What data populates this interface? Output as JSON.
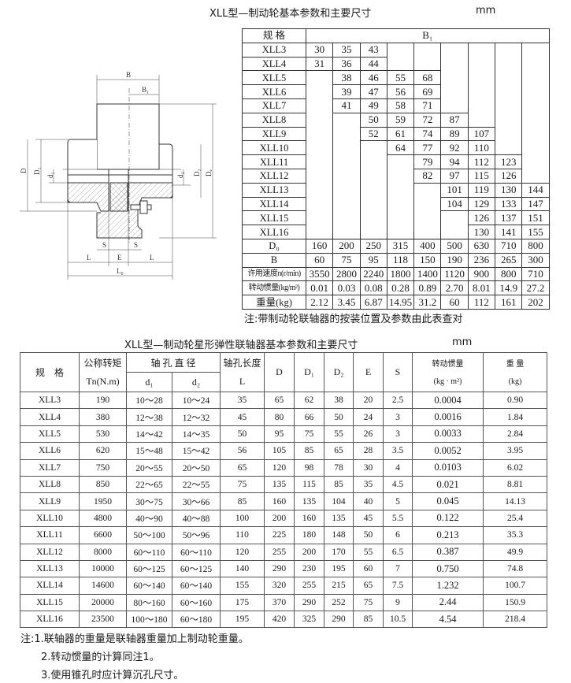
{
  "top": {
    "title": "XLL型—制动轮基本参数和主要尺寸",
    "unit": "mm",
    "header_label": "规 格",
    "header_b1": "B₁",
    "rows": [
      {
        "model": "XLL3",
        "values": [
          "30",
          "35",
          "43",
          "",
          "",
          "",
          "",
          "",
          ""
        ]
      },
      {
        "model": "XLL4",
        "values": [
          "31",
          "36",
          "44",
          "",
          "",
          "",
          "",
          "",
          ""
        ]
      },
      {
        "model": "XLL5",
        "values": [
          "",
          "38",
          "46",
          "55",
          "68",
          "",
          "",
          "",
          ""
        ]
      },
      {
        "model": "XLL6",
        "values": [
          "",
          "39",
          "47",
          "56",
          "69",
          "",
          "",
          "",
          ""
        ]
      },
      {
        "model": "XLL7",
        "values": [
          "",
          "41",
          "49",
          "58",
          "71",
          "",
          "",
          "",
          ""
        ]
      },
      {
        "model": "XLL8",
        "values": [
          "",
          "",
          "50",
          "59",
          "72",
          "87",
          "",
          "",
          ""
        ]
      },
      {
        "model": "XLL9",
        "values": [
          "",
          "",
          "52",
          "61",
          "74",
          "89",
          "107",
          "",
          ""
        ]
      },
      {
        "model": "XLL10",
        "values": [
          "",
          "",
          "",
          "64",
          "77",
          "92",
          "110",
          "",
          ""
        ]
      },
      {
        "model": "XLL11",
        "values": [
          "",
          "",
          "",
          "",
          "79",
          "94",
          "112",
          "123",
          ""
        ]
      },
      {
        "model": "XLL12",
        "values": [
          "",
          "",
          "",
          "",
          "82",
          "97",
          "115",
          "126",
          ""
        ]
      },
      {
        "model": "XLL13",
        "values": [
          "",
          "",
          "",
          "",
          "",
          "101",
          "119",
          "130",
          "144"
        ]
      },
      {
        "model": "XLL14",
        "values": [
          "",
          "",
          "",
          "",
          "",
          "104",
          "129",
          "133",
          "147"
        ]
      },
      {
        "model": "XLL15",
        "values": [
          "",
          "",
          "",
          "",
          "",
          "",
          "126",
          "137",
          "151"
        ]
      },
      {
        "model": "XLL16",
        "values": [
          "",
          "",
          "",
          "",
          "",
          "",
          "130",
          "141",
          "155"
        ]
      }
    ],
    "params": [
      {
        "label": "D₀",
        "values": [
          "160",
          "200",
          "250",
          "315",
          "400",
          "500",
          "630",
          "710",
          "800"
        ]
      },
      {
        "label": "B",
        "values": [
          "60",
          "75",
          "95",
          "118",
          "150",
          "190",
          "236",
          "265",
          "300"
        ]
      },
      {
        "label": "许用速度n(r/min)",
        "values": [
          "3550",
          "2800",
          "2240",
          "1800",
          "1400",
          "1120",
          "900",
          "800",
          "710"
        ]
      },
      {
        "label": "转动惯量(kg/m²)",
        "values": [
          "0.01",
          "0.03",
          "0.08",
          "0.28",
          "0.89",
          "2.70",
          "8.01",
          "14.9",
          "27.2"
        ]
      },
      {
        "label": "重量(kg)",
        "values": [
          "2.12",
          "3.45",
          "6.87",
          "14.95",
          "31.2",
          "60",
          "112",
          "161",
          "202"
        ]
      }
    ],
    "note": "注:带制动轮联轴器的按装位置及参数由此表查对"
  },
  "drawing": {
    "labels": {
      "B": "B",
      "B1": "B₁",
      "D": "D",
      "D1": "D₁",
      "d1": "d₁",
      "d2": "d₂",
      "D2": "D₂",
      "De": "Dₑ",
      "S": "S",
      "E": "E",
      "L": "L",
      "L0": "L₀"
    }
  },
  "bottom": {
    "title": "XLL型—制动轮星形弹性联轴器基本参数和主要尺寸",
    "unit": "mm",
    "headers": {
      "model": "规　格",
      "torque": "公称转矩",
      "torque_unit": "Tn(N.m)",
      "bore": "轴 孔 直 径",
      "d1": "d₁",
      "d2": "d₂",
      "length": "轴孔长度",
      "length_sym": "L",
      "D": "D",
      "D1": "D₁",
      "D2": "D₂",
      "E": "E",
      "S": "S",
      "inertia": "转动惯量",
      "inertia_unit": "(kg · m²)",
      "weight": "重 量",
      "weight_unit": "(kg)"
    },
    "rows": [
      [
        "XLL3",
        "190",
        "10～28",
        "10～24",
        "35",
        "65",
        "62",
        "38",
        "20",
        "2.5",
        "0.0004",
        "0.90"
      ],
      [
        "XLL4",
        "380",
        "12～38",
        "12～32",
        "45",
        "80",
        "66",
        "50",
        "24",
        "3",
        "0.0016",
        "1.84"
      ],
      [
        "XLL5",
        "530",
        "14～42",
        "14～35",
        "50",
        "95",
        "75",
        "55",
        "26",
        "3",
        "0.0033",
        "2.84"
      ],
      [
        "XLL6",
        "620",
        "15～48",
        "15～42",
        "56",
        "105",
        "85",
        "65",
        "28",
        "3.5",
        "0.0052",
        "3.95"
      ],
      [
        "XLL7",
        "750",
        "20～55",
        "20～50",
        "65",
        "120",
        "98",
        "78",
        "30",
        "4",
        "0.0103",
        "6.02"
      ],
      [
        "XLL8",
        "850",
        "22～65",
        "22～55",
        "75",
        "135",
        "115",
        "85",
        "35",
        "4.5",
        "0.021",
        "8.81"
      ],
      [
        "XLL9",
        "1950",
        "30～75",
        "30～66",
        "85",
        "160",
        "135",
        "104",
        "40",
        "5",
        "0.045",
        "14.13"
      ],
      [
        "XLL10",
        "4800",
        "40～90",
        "40～88",
        "100",
        "200",
        "160",
        "135",
        "45",
        "5.5",
        "0.122",
        "25.4"
      ],
      [
        "XLL11",
        "6600",
        "50～100",
        "50～96",
        "110",
        "225",
        "180",
        "148",
        "50",
        "6",
        "0.213",
        "35.3"
      ],
      [
        "XLL12",
        "8000",
        "60～110",
        "60～110",
        "120",
        "255",
        "200",
        "170",
        "55",
        "6.5",
        "0.387",
        "49.9"
      ],
      [
        "XLL13",
        "10000",
        "60～125",
        "60～125",
        "140",
        "290",
        "230",
        "195",
        "60",
        "7",
        "0.750",
        "74.8"
      ],
      [
        "XLL14",
        "14600",
        "60～140",
        "60～140",
        "155",
        "320",
        "255",
        "215",
        "65",
        "7.5",
        "1.232",
        "100.7"
      ],
      [
        "XLL15",
        "20000",
        "80～160",
        "60～160",
        "175",
        "370",
        "290",
        "252",
        "75",
        "9",
        "2.44",
        "150.9"
      ],
      [
        "XLL16",
        "23500",
        "100～180",
        "60～180",
        "195",
        "420",
        "325",
        "290",
        "85",
        "10.5",
        "4.54",
        "218.4"
      ]
    ],
    "notes": [
      "注:1.联轴器的重量是联轴器重量加上制动轮重量。",
      "2.转动惯量的计算同注1。",
      "3.使用锥孔时应计算沉孔尺寸。"
    ]
  }
}
